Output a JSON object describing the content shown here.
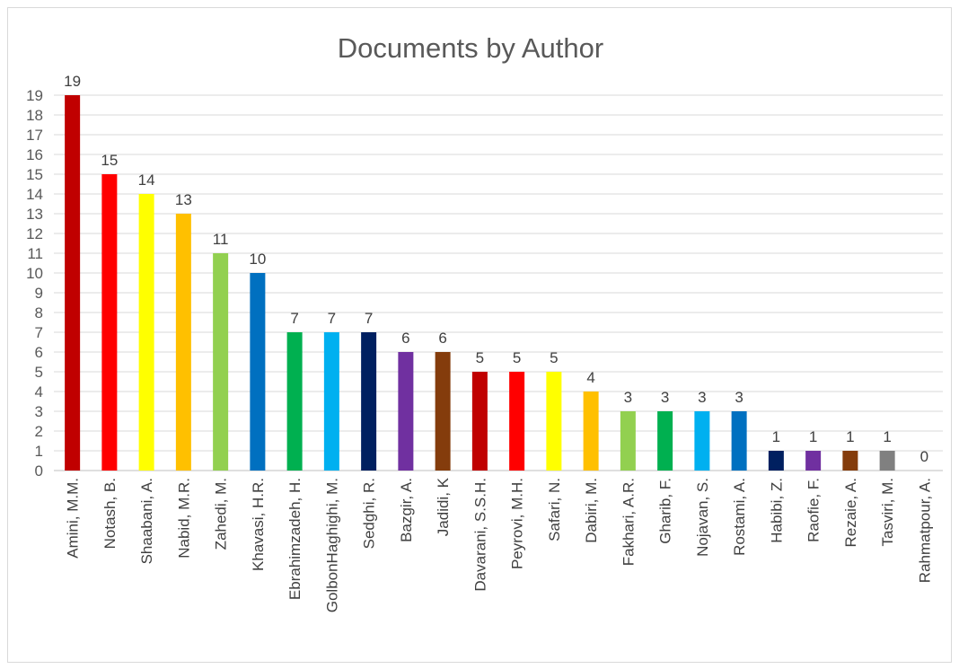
{
  "chart_data": {
    "type": "bar",
    "title": "Documents by Author",
    "xlabel": "",
    "ylabel": "",
    "ylim": [
      0,
      19
    ],
    "yticks": [
      0,
      1,
      2,
      3,
      4,
      5,
      6,
      7,
      8,
      9,
      10,
      11,
      12,
      13,
      14,
      15,
      16,
      17,
      18,
      19
    ],
    "grid": true,
    "legend": "none",
    "categories": [
      "Amini, M.M.",
      "Notash, B.",
      "Shaabani, A.",
      "Nabid, M.R.",
      "Zahedi, M.",
      "Khavasi, H.R.",
      "Ebrahimzadeh, H.",
      "GolbonHaghighi, M.",
      "Sedghi, R.",
      "Bazgir, A.",
      "Jadidi, K",
      "Davarani, S.S.H.",
      "Peyrovi, M.H.",
      "Safari, N.",
      "Dabiri, M.",
      "Fakhari, A.R.",
      "Gharib, F.",
      "Nojavan, S.",
      "Rostami, A.",
      "Habibi, Z.",
      "Raofie, F.",
      "Rezaie, A.",
      "Tasviri, M.",
      "Rahmatpour, A."
    ],
    "values": [
      19,
      15,
      14,
      13,
      11,
      10,
      7,
      7,
      7,
      6,
      6,
      5,
      5,
      5,
      4,
      3,
      3,
      3,
      3,
      1,
      1,
      1,
      1,
      0
    ],
    "colors": [
      "#c00000",
      "#ff0000",
      "#ffff00",
      "#ffc000",
      "#92d050",
      "#0070c0",
      "#00b050",
      "#00b0f0",
      "#002060",
      "#7030a0",
      "#843c0c",
      "#c00000",
      "#ff0000",
      "#ffff00",
      "#ffc000",
      "#92d050",
      "#00b050",
      "#00b0f0",
      "#0070c0",
      "#002060",
      "#7030a0",
      "#843c0c",
      "#808080",
      "#a5a5a5"
    ]
  }
}
